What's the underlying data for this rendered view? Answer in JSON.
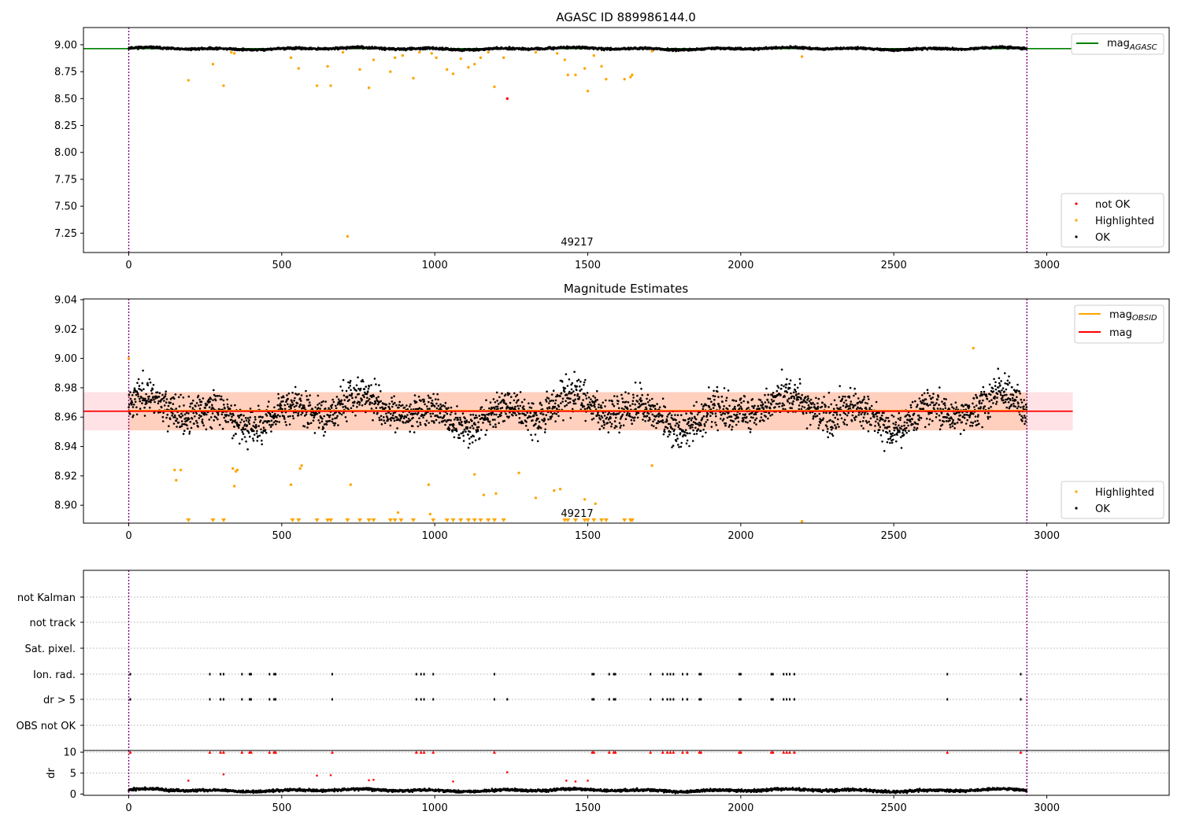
{
  "chart_data": [
    {
      "id": "top",
      "type": "scatter",
      "title": "AGASC ID 889986144.0",
      "xlim": [
        -148,
        3400
      ],
      "ylim": [
        7.07,
        9.16
      ],
      "x_ticks": [
        0,
        500,
        1000,
        1500,
        2000,
        2500,
        3000
      ],
      "y_ticks": [
        7.25,
        7.5,
        7.75,
        8.0,
        8.25,
        8.5,
        8.75,
        9.0
      ],
      "y_tick_labels": [
        "7.25",
        "7.50",
        "7.75",
        "8.00",
        "8.25",
        "8.50",
        "8.75",
        "9.00"
      ],
      "obsid_label": "49217",
      "obsid_label_x": 1470,
      "vlines_x": [
        0,
        2935
      ],
      "reference_line": {
        "name_main": "mag",
        "name_sub": "AGASC",
        "value": 8.964,
        "color": "#008000"
      },
      "legend_upper": [
        {
          "label_main": "mag",
          "label_sub": "AGASC",
          "color": "#008000"
        }
      ],
      "legend_lower": [
        {
          "label": "not OK",
          "color": "#ff0000"
        },
        {
          "label": "Highlighted",
          "color": "#ffa500"
        },
        {
          "label": "OK",
          "color": "#000000"
        }
      ],
      "series": [
        {
          "name": "not OK",
          "color": "#ff0000",
          "points": [
            [
              1237,
              8.5
            ]
          ]
        },
        {
          "name": "Highlighted",
          "color": "#ffa500",
          "points": [
            [
              195,
              8.67
            ],
            [
              275,
              8.82
            ],
            [
              310,
              8.62
            ],
            [
              335,
              8.93
            ],
            [
              345,
              8.92
            ],
            [
              530,
              8.88
            ],
            [
              555,
              8.78
            ],
            [
              615,
              8.62
            ],
            [
              650,
              8.8
            ],
            [
              660,
              8.62
            ],
            [
              700,
              8.93
            ],
            [
              715,
              7.22
            ],
            [
              755,
              8.77
            ],
            [
              785,
              8.6
            ],
            [
              800,
              8.86
            ],
            [
              855,
              8.75
            ],
            [
              870,
              8.88
            ],
            [
              895,
              8.9
            ],
            [
              930,
              8.69
            ],
            [
              950,
              8.93
            ],
            [
              990,
              8.92
            ],
            [
              1005,
              8.88
            ],
            [
              1040,
              8.77
            ],
            [
              1060,
              8.73
            ],
            [
              1085,
              8.87
            ],
            [
              1110,
              8.79
            ],
            [
              1130,
              8.82
            ],
            [
              1150,
              8.88
            ],
            [
              1175,
              8.93
            ],
            [
              1195,
              8.61
            ],
            [
              1225,
              8.88
            ],
            [
              1330,
              8.93
            ],
            [
              1400,
              8.92
            ],
            [
              1425,
              8.86
            ],
            [
              1435,
              8.72
            ],
            [
              1460,
              8.72
            ],
            [
              1490,
              8.78
            ],
            [
              1500,
              8.57
            ],
            [
              1520,
              8.9
            ],
            [
              1545,
              8.8
            ],
            [
              1560,
              8.68
            ],
            [
              1620,
              8.68
            ],
            [
              1640,
              8.7
            ],
            [
              1645,
              8.72
            ],
            [
              1710,
              8.94
            ],
            [
              2200,
              8.89
            ]
          ]
        }
      ],
      "ok_band": {
        "center": 8.964,
        "amplitude": 0.012,
        "noise": 0.01,
        "count": 2900,
        "color": "#000000"
      }
    },
    {
      "id": "middle",
      "type": "scatter",
      "title": "Magnitude Estimates",
      "xlim": [
        -148,
        3400
      ],
      "ylim": [
        8.8878,
        9.0405
      ],
      "x_ticks": [
        0,
        500,
        1000,
        1500,
        2000,
        2500,
        3000
      ],
      "y_ticks": [
        8.9,
        8.92,
        8.94,
        8.96,
        8.98,
        9.0,
        9.02,
        9.04
      ],
      "y_tick_labels": [
        "8.90",
        "8.92",
        "8.94",
        "8.96",
        "8.98",
        "9.00",
        "9.02",
        "9.04"
      ],
      "obsid_label": "49217",
      "obsid_label_x": 1470,
      "vlines_x": [
        0,
        2935
      ],
      "mag_line": {
        "value": 8.964,
        "color": "#ff0000"
      },
      "mag_band": {
        "low": 8.951,
        "high": 8.977,
        "x_end": 3085,
        "color": "#ffb6c1"
      },
      "obsid_band": {
        "low": 8.951,
        "high": 8.977,
        "x_start": 0,
        "x_end": 2935,
        "color": "#ffa560"
      },
      "legend_upper": [
        {
          "label_main": "mag",
          "label_sub": "OBSID",
          "color": "#ffa500"
        },
        {
          "label_main": "mag",
          "label_sub": "",
          "color": "#ff0000"
        }
      ],
      "legend_lower": [
        {
          "label": "Highlighted",
          "color": "#ffa500"
        },
        {
          "label": "OK",
          "color": "#000000"
        }
      ],
      "series": [
        {
          "name": "Highlighted",
          "color": "#ffa500",
          "points": [
            [
              0,
              9.0
            ],
            [
              150,
              8.924
            ],
            [
              155,
              8.917
            ],
            [
              170,
              8.924
            ],
            [
              340,
              8.925
            ],
            [
              345,
              8.913
            ],
            [
              350,
              8.923
            ],
            [
              355,
              8.924
            ],
            [
              560,
              8.925
            ],
            [
              565,
              8.927
            ],
            [
              530,
              8.914
            ],
            [
              725,
              8.914
            ],
            [
              880,
              8.895
            ],
            [
              980,
              8.914
            ],
            [
              985,
              8.894
            ],
            [
              1130,
              8.921
            ],
            [
              1160,
              8.907
            ],
            [
              1200,
              8.908
            ],
            [
              1275,
              8.922
            ],
            [
              1330,
              8.905
            ],
            [
              1390,
              8.91
            ],
            [
              1410,
              8.911
            ],
            [
              1490,
              8.904
            ],
            [
              1525,
              8.901
            ],
            [
              1710,
              8.927
            ],
            [
              2200,
              8.889
            ],
            [
              2760,
              9.007
            ]
          ]
        },
        {
          "name": "Highlighted (below range)",
          "color": "#ffa500",
          "x": [
            195,
            275,
            310,
            535,
            555,
            615,
            650,
            660,
            715,
            755,
            785,
            800,
            855,
            870,
            890,
            930,
            995,
            1040,
            1060,
            1085,
            1110,
            1130,
            1150,
            1175,
            1195,
            1225,
            1425,
            1435,
            1460,
            1490,
            1500,
            1520,
            1545,
            1560,
            1620,
            1640,
            1645
          ]
        }
      ],
      "ok_band": {
        "center": 8.964,
        "amplitude": 0.012,
        "noise": 0.012,
        "count": 2900,
        "color": "#000000"
      }
    },
    {
      "id": "bottom",
      "type": "scatter",
      "xlim": [
        -148,
        3400
      ],
      "x_ticks": [
        0,
        500,
        1000,
        1500,
        2000,
        2500,
        3000
      ],
      "vlines_x": [
        0,
        2935
      ],
      "flag_rows": [
        "not Kalman",
        "not track",
        "Sat. pixel.",
        "Ion. rad.",
        "dr > 5",
        "OBS not OK"
      ],
      "flags": {
        "Ion. rad.": [
          5,
          265,
          300,
          310,
          370,
          395,
          400,
          460,
          475,
          480,
          665,
          940,
          955,
          965,
          995,
          1195,
          1515,
          1520,
          1570,
          1585,
          1590,
          1705,
          1745,
          1760,
          1770,
          1780,
          1810,
          1825,
          1865,
          1870,
          1995,
          2000,
          2100,
          2105,
          2140,
          2150,
          2160,
          2175,
          2675,
          2915
        ],
        "dr > 5": [
          5,
          265,
          300,
          310,
          370,
          395,
          400,
          460,
          475,
          480,
          665,
          940,
          955,
          965,
          995,
          1195,
          1237,
          1515,
          1520,
          1570,
          1585,
          1590,
          1705,
          1745,
          1760,
          1770,
          1780,
          1810,
          1825,
          1865,
          1870,
          1995,
          2000,
          2100,
          2105,
          2140,
          2150,
          2160,
          2175,
          2675,
          2915
        ]
      },
      "dr": {
        "ylabel": "dr",
        "ylim": [
          -0.3,
          10.4
        ],
        "y_ticks": [
          0,
          5,
          10
        ],
        "y_tick_labels": [
          "0",
          "5",
          "10"
        ],
        "ok_band": {
          "center": 0.9,
          "amplitude": 0.35,
          "noise": 0.3,
          "count": 2900,
          "color": "#000000"
        },
        "red_points": [
          [
            195,
            3.2
          ],
          [
            310,
            4.7
          ],
          [
            615,
            4.4
          ],
          [
            660,
            4.5
          ],
          [
            785,
            3.3
          ],
          [
            800,
            3.4
          ],
          [
            1060,
            3.0
          ],
          [
            1237,
            5.2
          ],
          [
            1430,
            3.2
          ],
          [
            1460,
            3.0
          ],
          [
            1500,
            3.2
          ]
        ],
        "capped_x": [
          5,
          265,
          300,
          310,
          370,
          395,
          400,
          460,
          475,
          480,
          665,
          940,
          955,
          965,
          995,
          1195,
          1515,
          1520,
          1570,
          1585,
          1590,
          1705,
          1745,
          1760,
          1770,
          1780,
          1810,
          1825,
          1865,
          1870,
          1995,
          2000,
          2100,
          2105,
          2140,
          2150,
          2160,
          2175,
          2675,
          2915
        ]
      }
    }
  ]
}
